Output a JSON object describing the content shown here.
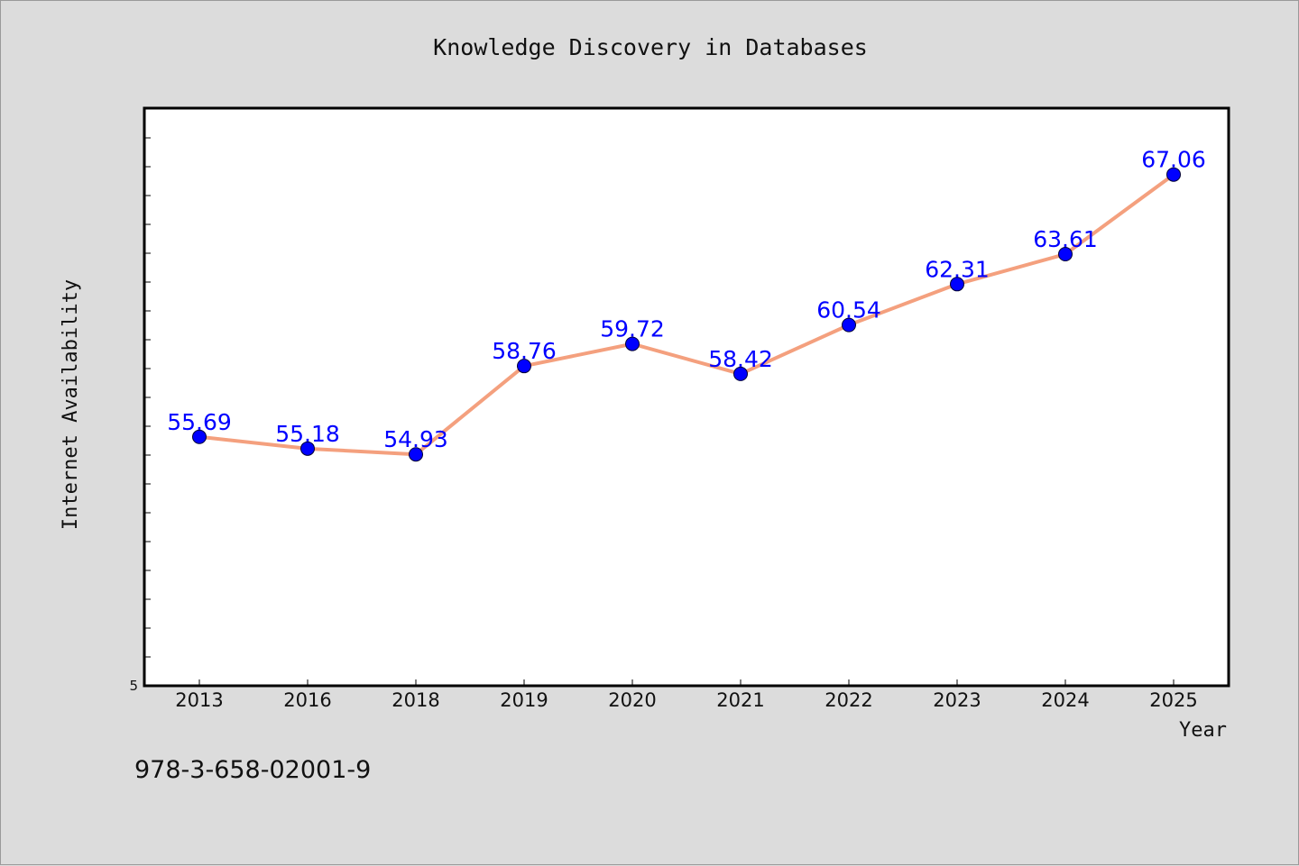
{
  "footer_id": "978-3-658-02001-9",
  "chart_data": {
    "type": "line",
    "title": "Knowledge Discovery in Databases",
    "xlabel": "Year",
    "ylabel": "Internet Availability",
    "categories": [
      "2013",
      "2016",
      "2018",
      "2019",
      "2020",
      "2021",
      "2022",
      "2023",
      "2024",
      "2025"
    ],
    "values": [
      55.69,
      55.18,
      54.93,
      58.76,
      59.72,
      58.42,
      60.54,
      62.31,
      63.61,
      67.06
    ],
    "data_labels": [
      "55.69",
      "55.18",
      "54.93",
      "58.76",
      "59.72",
      "58.42",
      "60.54",
      "62.31",
      "63.61",
      "67.06"
    ],
    "y_tick_labels": [
      "5"
    ],
    "ylim": [
      44.9,
      69.9
    ],
    "grid": false,
    "line_color": "#f4a07e",
    "marker_color": "#0000ff",
    "label_color": "#0000ff"
  }
}
